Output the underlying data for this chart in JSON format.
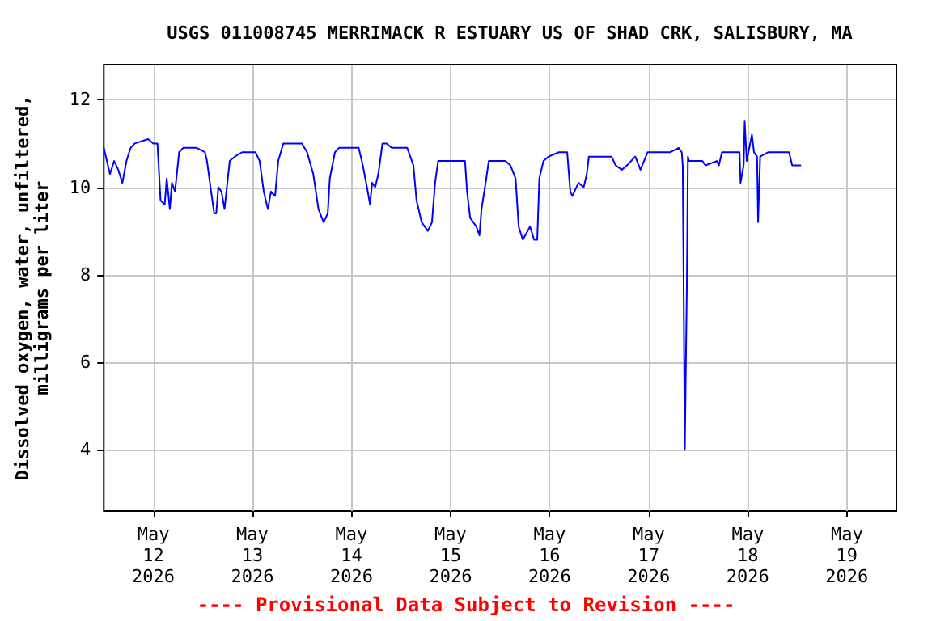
{
  "chart_data": {
    "type": "line",
    "title": "USGS 011008745 MERRIMACK R ESTUARY US OF SHAD CRK, SALISBURY, MA",
    "ylabel": "Dissolved oxygen, water, unfiltered,\nmilligrams per liter",
    "annotations": [
      "---- Provisional Data Subject to Revision ----"
    ],
    "x": [
      "2026-05-11T12:00",
      "2026-05-11T13:00",
      "2026-05-11T13:30",
      "2026-05-11T14:30",
      "2026-05-11T15:30",
      "2026-05-11T16:30",
      "2026-05-11T17:30",
      "2026-05-11T18:30",
      "2026-05-11T19:30",
      "2026-05-11T22:45",
      "2026-05-12T00:00",
      "2026-05-12T01:00",
      "2026-05-12T01:45",
      "2026-05-12T02:45",
      "2026-05-12T03:15",
      "2026-05-12T04:00",
      "2026-05-12T04:30",
      "2026-05-12T05:15",
      "2026-05-12T06:15",
      "2026-05-12T07:15",
      "2026-05-12T10:30",
      "2026-05-12T12:30",
      "2026-05-12T13:00",
      "2026-05-12T14:00",
      "2026-05-12T14:45",
      "2026-05-12T15:15",
      "2026-05-12T15:45",
      "2026-05-12T16:30",
      "2026-05-12T17:15",
      "2026-05-12T18:30",
      "2026-05-12T19:45",
      "2026-05-12T21:30",
      "2026-05-13T00:45",
      "2026-05-13T01:45",
      "2026-05-13T02:45",
      "2026-05-13T03:45",
      "2026-05-13T04:30",
      "2026-05-13T05:30",
      "2026-05-13T06:15",
      "2026-05-13T07:30",
      "2026-05-13T12:00",
      "2026-05-13T13:15",
      "2026-05-13T14:45",
      "2026-05-13T16:00",
      "2026-05-13T17:15",
      "2026-05-13T18:15",
      "2026-05-13T18:45",
      "2026-05-13T20:00",
      "2026-05-13T21:00",
      "2026-05-14T01:45",
      "2026-05-14T02:45",
      "2026-05-14T03:45",
      "2026-05-14T04:30",
      "2026-05-14T05:00",
      "2026-05-14T05:45",
      "2026-05-14T06:30",
      "2026-05-14T07:30",
      "2026-05-14T08:30",
      "2026-05-14T09:45",
      "2026-05-14T13:30",
      "2026-05-14T15:00",
      "2026-05-14T15:45",
      "2026-05-14T17:00",
      "2026-05-14T18:30",
      "2026-05-14T19:30",
      "2026-05-14T20:15",
      "2026-05-14T21:00",
      "2026-05-15T03:30",
      "2026-05-15T04:00",
      "2026-05-15T04:45",
      "2026-05-15T06:15",
      "2026-05-15T07:00",
      "2026-05-15T07:30",
      "2026-05-15T08:30",
      "2026-05-15T09:15",
      "2026-05-15T13:15",
      "2026-05-15T14:30",
      "2026-05-15T15:45",
      "2026-05-15T16:30",
      "2026-05-15T17:30",
      "2026-05-15T19:15",
      "2026-05-15T20:15",
      "2026-05-15T21:00",
      "2026-05-15T21:30",
      "2026-05-15T22:30",
      "2026-05-15T23:45",
      "2026-05-16T02:15",
      "2026-05-16T04:15",
      "2026-05-16T05:00",
      "2026-05-16T05:30",
      "2026-05-16T07:00",
      "2026-05-16T08:15",
      "2026-05-16T09:00",
      "2026-05-16T09:30",
      "2026-05-16T11:00",
      "2026-05-16T15:00",
      "2026-05-16T16:00",
      "2026-05-16T17:30",
      "2026-05-16T18:45",
      "2026-05-16T20:45",
      "2026-05-16T22:00",
      "2026-05-16T23:45",
      "2026-05-17T05:15",
      "2026-05-17T07:15",
      "2026-05-17T08:00",
      "2026-05-17T08:15",
      "2026-05-17T08:45",
      "2026-05-17T09:15",
      "2026-05-17T09:30",
      "2026-05-17T09:45",
      "2026-05-17T13:00",
      "2026-05-17T13:45",
      "2026-05-17T16:30",
      "2026-05-17T17:00",
      "2026-05-17T17:45",
      "2026-05-17T22:00",
      "2026-05-17T22:15",
      "2026-05-17T23:00",
      "2026-05-17T23:15",
      "2026-05-17T23:45",
      "2026-05-18T01:00",
      "2026-05-18T01:30",
      "2026-05-18T02:15",
      "2026-05-18T02:30",
      "2026-05-18T03:00",
      "2026-05-18T05:00",
      "2026-05-18T10:00",
      "2026-05-18T10:45",
      "2026-05-18T12:45"
    ],
    "series": [
      {
        "color": "#0000ff",
        "values": [
          10.9,
          10.5,
          10.3,
          10.6,
          10.4,
          10.1,
          10.6,
          10.9,
          11.0,
          11.1,
          11.0,
          11.0,
          9.7,
          9.6,
          10.2,
          9.5,
          10.1,
          9.9,
          10.8,
          10.9,
          10.9,
          10.8,
          10.6,
          9.9,
          9.4,
          9.4,
          10.0,
          9.9,
          9.5,
          10.6,
          10.7,
          10.8,
          10.8,
          10.6,
          9.9,
          9.5,
          9.9,
          9.8,
          10.6,
          11.0,
          11.0,
          10.8,
          10.3,
          9.5,
          9.2,
          9.4,
          10.2,
          10.8,
          10.9,
          10.9,
          10.5,
          10.0,
          9.6,
          10.1,
          10.0,
          10.3,
          11.0,
          11.0,
          10.9,
          10.9,
          10.5,
          9.7,
          9.2,
          9.0,
          9.2,
          10.1,
          10.6,
          10.6,
          9.9,
          9.3,
          9.1,
          8.9,
          9.5,
          10.1,
          10.6,
          10.6,
          10.5,
          10.2,
          9.1,
          8.8,
          9.1,
          8.8,
          8.8,
          10.2,
          10.6,
          10.7,
          10.8,
          10.8,
          9.9,
          9.8,
          10.1,
          10.0,
          10.3,
          10.7,
          10.7,
          10.7,
          10.5,
          10.4,
          10.5,
          10.7,
          10.4,
          10.8,
          10.8,
          10.9,
          10.8,
          10.5,
          4.0,
          7.8,
          10.7,
          10.6,
          10.6,
          10.5,
          10.6,
          10.5,
          10.8,
          10.8,
          10.1,
          10.5,
          11.5,
          10.6,
          11.2,
          10.8,
          10.7,
          9.2,
          10.7,
          10.8,
          10.8,
          10.5,
          10.5
        ]
      }
    ],
    "xlim": [
      "2026-05-11T12:00",
      "2026-05-19T12:00"
    ],
    "xticks": [
      {
        "value": "2026-05-12",
        "label": "May\n12\n2026"
      },
      {
        "value": "2026-05-13",
        "label": "May\n13\n2026"
      },
      {
        "value": "2026-05-14",
        "label": "May\n14\n2026"
      },
      {
        "value": "2026-05-15",
        "label": "May\n15\n2026"
      },
      {
        "value": "2026-05-16",
        "label": "May\n16\n2026"
      },
      {
        "value": "2026-05-17",
        "label": "May\n17\n2026"
      },
      {
        "value": "2026-05-18",
        "label": "May\n18\n2026"
      },
      {
        "value": "2026-05-19",
        "label": "May\n19\n2026"
      }
    ],
    "ylim": [
      2.6,
      12.8
    ],
    "yticks": [
      4,
      6,
      8,
      10,
      12
    ],
    "grid": true,
    "marker": "none",
    "line_style": "solid"
  }
}
